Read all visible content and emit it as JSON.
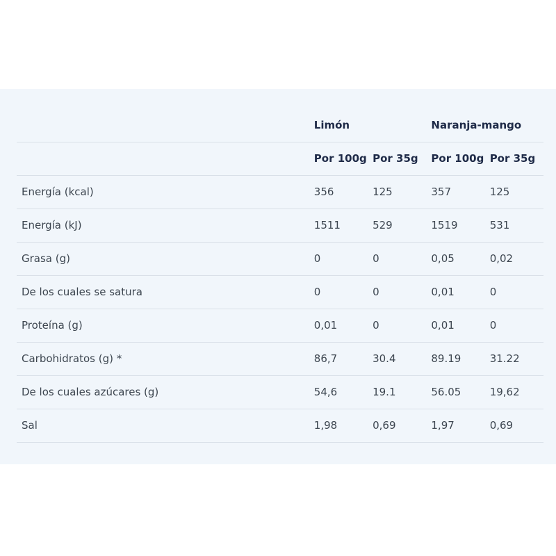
{
  "table": {
    "products": [
      "Limón",
      "Naranja-mango"
    ],
    "subheaders": [
      "Por 100g",
      "Por 35g",
      "Por 100g",
      "Por 35g"
    ],
    "rows": [
      {
        "label": "Energía (kcal)",
        "values": [
          "356",
          "125",
          "357",
          "125"
        ]
      },
      {
        "label": "Energía (kJ)",
        "values": [
          "1511",
          "529",
          "1519",
          "531"
        ]
      },
      {
        "label": "Grasa (g)",
        "values": [
          "0",
          "0",
          "0,05",
          "0,02"
        ]
      },
      {
        "label": "De los cuales se satura",
        "values": [
          "0",
          "0",
          "0,01",
          "0"
        ]
      },
      {
        "label": "Proteína (g)",
        "values": [
          "0,01",
          "0",
          "0,01",
          "0"
        ]
      },
      {
        "label": "Carbohidratos (g) *",
        "values": [
          "86,7",
          "30.4",
          "89.19",
          "31.22"
        ]
      },
      {
        "label": "De los cuales azúcares (g)",
        "values": [
          "54,6",
          "19.1",
          "56.05",
          "19,62"
        ]
      },
      {
        "label": "Sal",
        "values": [
          "1,98",
          "0,69",
          "1,97",
          "0,69"
        ]
      }
    ]
  },
  "colors": {
    "panel_bg": "#f1f6fb",
    "header_text": "#1f2b48",
    "body_text": "#3d4650",
    "divider": "#d9e0e8"
  }
}
